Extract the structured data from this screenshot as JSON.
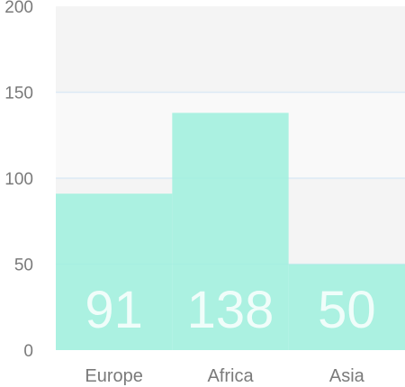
{
  "chart_data": {
    "type": "bar",
    "categories": [
      "Europe",
      "Africa",
      "Asia"
    ],
    "values": [
      91,
      138,
      50
    ],
    "ylim": [
      0,
      200
    ],
    "yticks": [
      0,
      50,
      100,
      150,
      200
    ],
    "grid": true,
    "bar_color": "#9ef0dd",
    "band_colors": [
      "#f4f4f4",
      "#f9f9f9"
    ],
    "grid_color": "#dceaf5",
    "label_color": "#7a7a7a"
  }
}
